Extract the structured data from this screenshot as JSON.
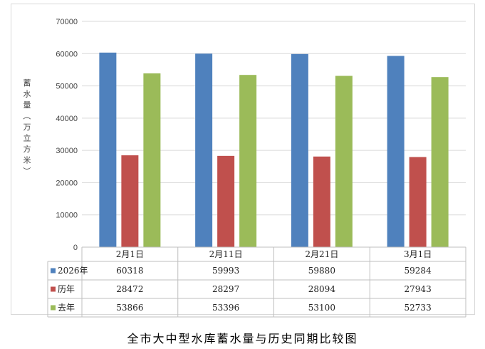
{
  "chart_data": {
    "type": "bar",
    "title": "全市大中型水库蓄水量与历史同期比较图",
    "ylabel": "蓄水量（万立方米）",
    "xlabel": "",
    "ylim": [
      0,
      70000
    ],
    "yticks": [
      0,
      10000,
      20000,
      30000,
      40000,
      50000,
      60000,
      70000
    ],
    "grid": true,
    "legend": "data-table",
    "categories": [
      "2月1日",
      "2月11日",
      "2月21日",
      "3月1日"
    ],
    "series": [
      {
        "name": "2026年",
        "color": "#4f81bd",
        "values": [
          60318,
          59993,
          59880,
          59284
        ]
      },
      {
        "name": "历年",
        "color": "#c0504d",
        "values": [
          28472,
          28297,
          28094,
          27943
        ]
      },
      {
        "name": "去年",
        "color": "#9bbb59",
        "values": [
          53866,
          53396,
          53100,
          52733
        ]
      }
    ]
  }
}
